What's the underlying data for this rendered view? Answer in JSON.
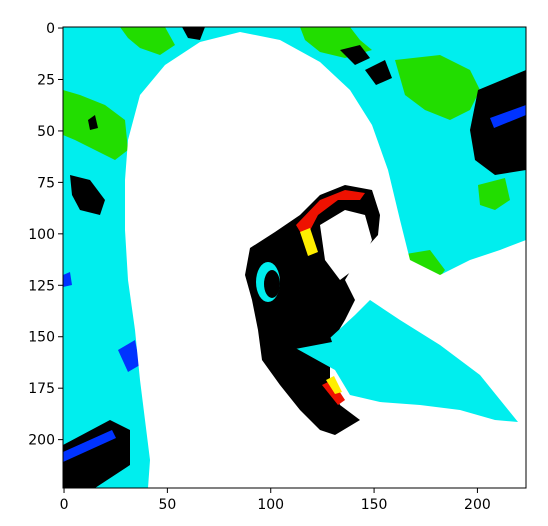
{
  "chart_data": {
    "type": "image",
    "title": "",
    "xlabel": "",
    "ylabel": "",
    "xlim": [
      -0.5,
      223.5
    ],
    "ylim": [
      223.5,
      -0.5
    ],
    "x_ticks": [
      0,
      50,
      100,
      150,
      200
    ],
    "y_ticks": [
      0,
      25,
      50,
      75,
      100,
      125,
      150,
      175,
      200
    ],
    "x_tick_labels": [
      "0",
      "50",
      "100",
      "150",
      "200"
    ],
    "y_tick_labels": [
      "0",
      "25",
      "50",
      "75",
      "100",
      "125",
      "150",
      "175",
      "200"
    ],
    "colors": {
      "cyan": "#00eeee",
      "green": "#22dd00",
      "white": "#ffffff",
      "black": "#000000",
      "blue": "#0033ff",
      "red": "#ee1100",
      "yellow": "#ffee00"
    }
  }
}
